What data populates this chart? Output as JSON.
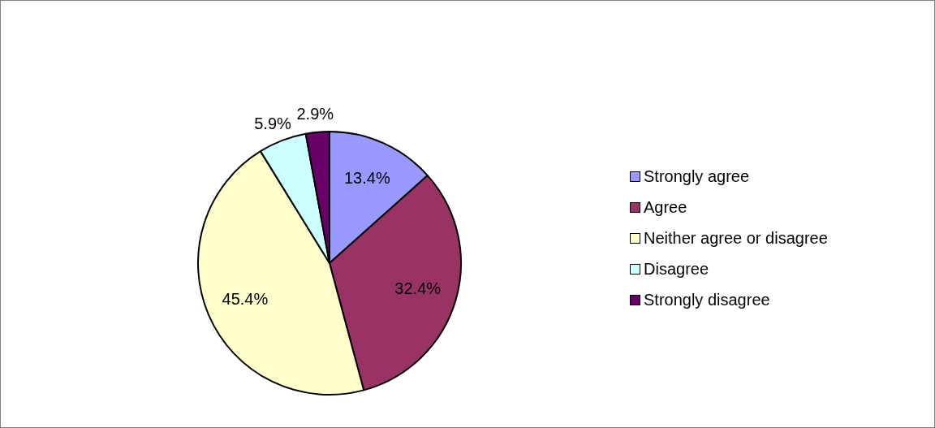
{
  "chart_data": {
    "type": "pie",
    "categories": [
      "Strongly agree",
      "Agree",
      "Neither agree or disagree",
      "Disagree",
      "Strongly disagree"
    ],
    "values": [
      13.4,
      32.4,
      45.4,
      5.9,
      2.9
    ],
    "colors": [
      "#9999ff",
      "#993366",
      "#ffffcc",
      "#ccffff",
      "#660066"
    ],
    "value_labels": [
      "13.4%",
      "32.4%",
      "45.4%",
      "5.9%",
      "2.9%"
    ],
    "legend": "right"
  }
}
